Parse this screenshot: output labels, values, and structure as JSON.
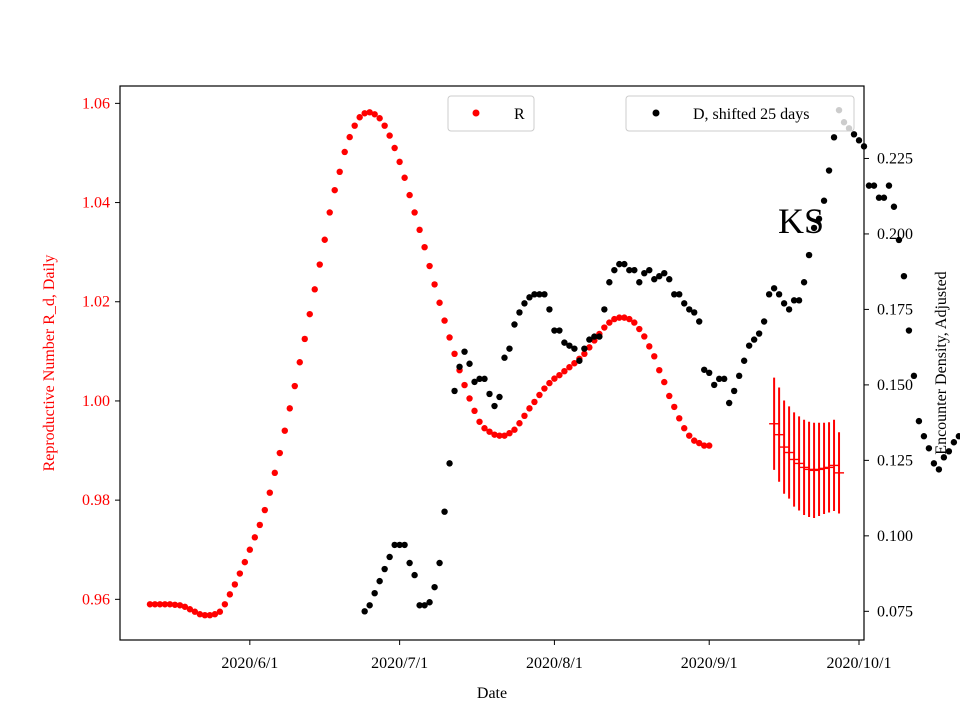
{
  "chart_data": {
    "type": "scatter",
    "xlabel": "Date",
    "x_ticks": [
      "2020/6/1",
      "2020/7/1",
      "2020/8/1",
      "2020/9/1",
      "2020/10/1"
    ],
    "x_range": [
      "2020/5/6",
      "2020/10/2"
    ],
    "y_left": {
      "label": "Reproductive Number R_d, Daily",
      "color": "#ff0000",
      "range": [
        0.9518,
        1.0635
      ],
      "ticks": [
        "0.96",
        "0.98",
        "1.00",
        "1.02",
        "1.04",
        "1.06"
      ]
    },
    "y_right": {
      "label": "Encounter Density, Adjusted",
      "color": "#000000",
      "range": [
        0.0655,
        0.249
      ],
      "ticks": [
        "0.075",
        "0.100",
        "0.125",
        "0.150",
        "0.175",
        "0.200",
        "0.225"
      ]
    },
    "annotation": "KS",
    "legend": [
      {
        "name": "R",
        "color": "#ff0000",
        "placement": "top-center"
      },
      {
        "name": "D, shifted 25 days",
        "color": "#000000",
        "placement": "top-right"
      }
    ],
    "series": [
      {
        "name": "R",
        "axis": "left",
        "color": "#ff0000",
        "start_date": "2020/5/12",
        "values": [
          0.959,
          0.959,
          0.959,
          0.959,
          0.959,
          0.9589,
          0.9588,
          0.9585,
          0.958,
          0.9575,
          0.957,
          0.9568,
          0.9568,
          0.957,
          0.9575,
          0.959,
          0.961,
          0.963,
          0.9652,
          0.9675,
          0.97,
          0.9725,
          0.975,
          0.978,
          0.9815,
          0.9855,
          0.9895,
          0.994,
          0.9985,
          1.003,
          1.0078,
          1.0125,
          1.0175,
          1.0225,
          1.0275,
          1.0325,
          1.038,
          1.0425,
          1.0462,
          1.0502,
          1.0532,
          1.0555,
          1.0572,
          1.058,
          1.0582,
          1.0578,
          1.057,
          1.0555,
          1.0535,
          1.051,
          1.0482,
          1.045,
          1.0415,
          1.038,
          1.0345,
          1.031,
          1.0272,
          1.0235,
          1.0198,
          1.0162,
          1.0128,
          1.0095,
          1.0062,
          1.0032,
          1.0005,
          0.998,
          0.9958,
          0.9945,
          0.9938,
          0.9932,
          0.993,
          0.993,
          0.9935,
          0.9942,
          0.9955,
          0.997,
          0.9985,
          0.9998,
          1.0012,
          1.0025,
          1.0036,
          1.0045,
          1.0052,
          1.006,
          1.0068,
          1.0076,
          1.0085,
          1.0095,
          1.0108,
          1.0122,
          1.0135,
          1.0148,
          1.0158,
          1.0165,
          1.0168,
          1.0168,
          1.0165,
          1.0158,
          1.0145,
          1.013,
          1.011,
          1.009,
          1.0062,
          1.0038,
          1.001,
          0.9988,
          0.9965,
          0.9945,
          0.993,
          0.992,
          0.9915,
          0.991,
          0.991
        ]
      },
      {
        "name": "D, shifted 25 days",
        "axis": "right",
        "color": "#000000",
        "start_date": "2020/6/24",
        "values": [
          0.075,
          0.077,
          0.081,
          0.085,
          0.089,
          0.093,
          0.097,
          0.097,
          0.097,
          0.091,
          0.087,
          0.077,
          0.077,
          0.078,
          0.083,
          0.091,
          0.108,
          0.124,
          0.148,
          0.156,
          0.161,
          0.157,
          0.151,
          0.152,
          0.152,
          0.147,
          0.143,
          0.146,
          0.159,
          0.162,
          0.17,
          0.174,
          0.177,
          0.179,
          0.18,
          0.18,
          0.18,
          0.175,
          0.168,
          0.168,
          0.164,
          0.163,
          0.162,
          0.158,
          0.162,
          0.165,
          0.166,
          0.166,
          0.175,
          0.184,
          0.188,
          0.19,
          0.19,
          0.188,
          0.188,
          0.184,
          0.187,
          0.188,
          0.185,
          0.186,
          0.187,
          0.185,
          0.18,
          0.18,
          0.177,
          0.175,
          0.174,
          0.171,
          0.155,
          0.154,
          0.15,
          0.152,
          0.152,
          0.144,
          0.148,
          0.153,
          0.158,
          0.163,
          0.165,
          0.167,
          0.171,
          0.18,
          0.182,
          0.18,
          0.177,
          0.175,
          0.178,
          0.178,
          0.184,
          0.193,
          0.202,
          0.205,
          0.211,
          0.221,
          0.232,
          0.241,
          0.237,
          0.235,
          0.233,
          0.231,
          0.229,
          0.216,
          0.216,
          0.212,
          0.212,
          0.216,
          0.209,
          0.198,
          0.186,
          0.168,
          0.153,
          0.138,
          0.133,
          0.129,
          0.124,
          0.122,
          0.126,
          0.128,
          0.131,
          0.133,
          0.12
        ]
      }
    ],
    "error_bars": {
      "axis": "left",
      "color": "#ff0000",
      "points": [
        {
          "date": "2020/9/14",
          "y": 0.9954,
          "err": 0.0093
        },
        {
          "date": "2020/9/15",
          "y": 0.9932,
          "err": 0.0095
        },
        {
          "date": "2020/9/16",
          "y": 0.9907,
          "err": 0.0094
        },
        {
          "date": "2020/9/17",
          "y": 0.9896,
          "err": 0.0093
        },
        {
          "date": "2020/9/18",
          "y": 0.9882,
          "err": 0.0095
        },
        {
          "date": "2020/9/19",
          "y": 0.9874,
          "err": 0.0095
        },
        {
          "date": "2020/9/20",
          "y": 0.9866,
          "err": 0.0096
        },
        {
          "date": "2020/9/21",
          "y": 0.9862,
          "err": 0.0096
        },
        {
          "date": "2020/9/22",
          "y": 0.986,
          "err": 0.0096
        },
        {
          "date": "2020/9/23",
          "y": 0.9862,
          "err": 0.0094
        },
        {
          "date": "2020/9/24",
          "y": 0.9864,
          "err": 0.0092
        },
        {
          "date": "2020/9/25",
          "y": 0.9866,
          "err": 0.0091
        },
        {
          "date": "2020/9/26",
          "y": 0.987,
          "err": 0.0092
        },
        {
          "date": "2020/9/27",
          "y": 0.9855,
          "err": 0.0082
        }
      ]
    }
  }
}
